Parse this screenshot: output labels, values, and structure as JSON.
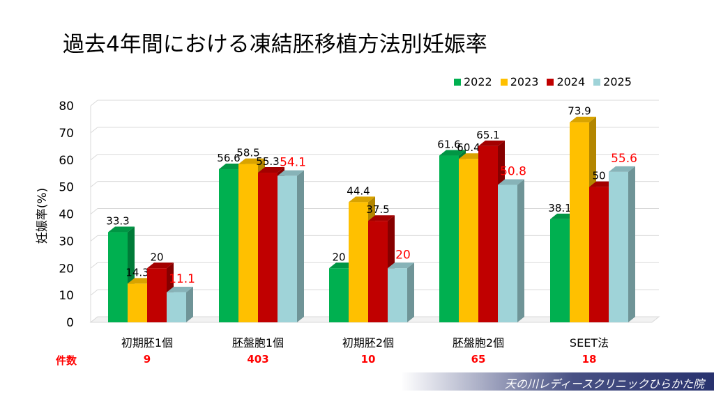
{
  "chart_data": {
    "type": "bar",
    "title": "過去4年間における凍結胚移植方法別妊娠率",
    "ylabel": "妊娠率(%)",
    "xlabel": "",
    "ylim": [
      0,
      80
    ],
    "yticks": [
      0,
      10,
      20,
      30,
      40,
      50,
      60,
      70,
      80
    ],
    "categories": [
      "初期胚1個",
      "胚盤胞1個",
      "初期胚2個",
      "胚盤胞2個",
      "SEET法"
    ],
    "series": [
      {
        "name": "2022",
        "color": "#00b050",
        "values": [
          33.3,
          56.6,
          20,
          61.6,
          38.1
        ],
        "label_color": "#000000"
      },
      {
        "name": "2023",
        "color": "#ffc000",
        "values": [
          14.3,
          58.5,
          44.4,
          60.4,
          73.9
        ],
        "label_color": "#000000"
      },
      {
        "name": "2024",
        "color": "#c00000",
        "values": [
          20,
          55.3,
          37.5,
          65.1,
          50
        ],
        "label_color": "#000000"
      },
      {
        "name": "2025",
        "color": "#9fd3d8",
        "values": [
          11.1,
          54.1,
          20,
          50.8,
          55.6
        ],
        "label_color": "#ff0000"
      }
    ],
    "legend_position": "top-right"
  },
  "counts": {
    "label": "件数",
    "values": [
      "9",
      "403",
      "10",
      "65",
      "18"
    ]
  },
  "footer": {
    "clinic_name": "天の川レディースクリニックひらかた院"
  }
}
